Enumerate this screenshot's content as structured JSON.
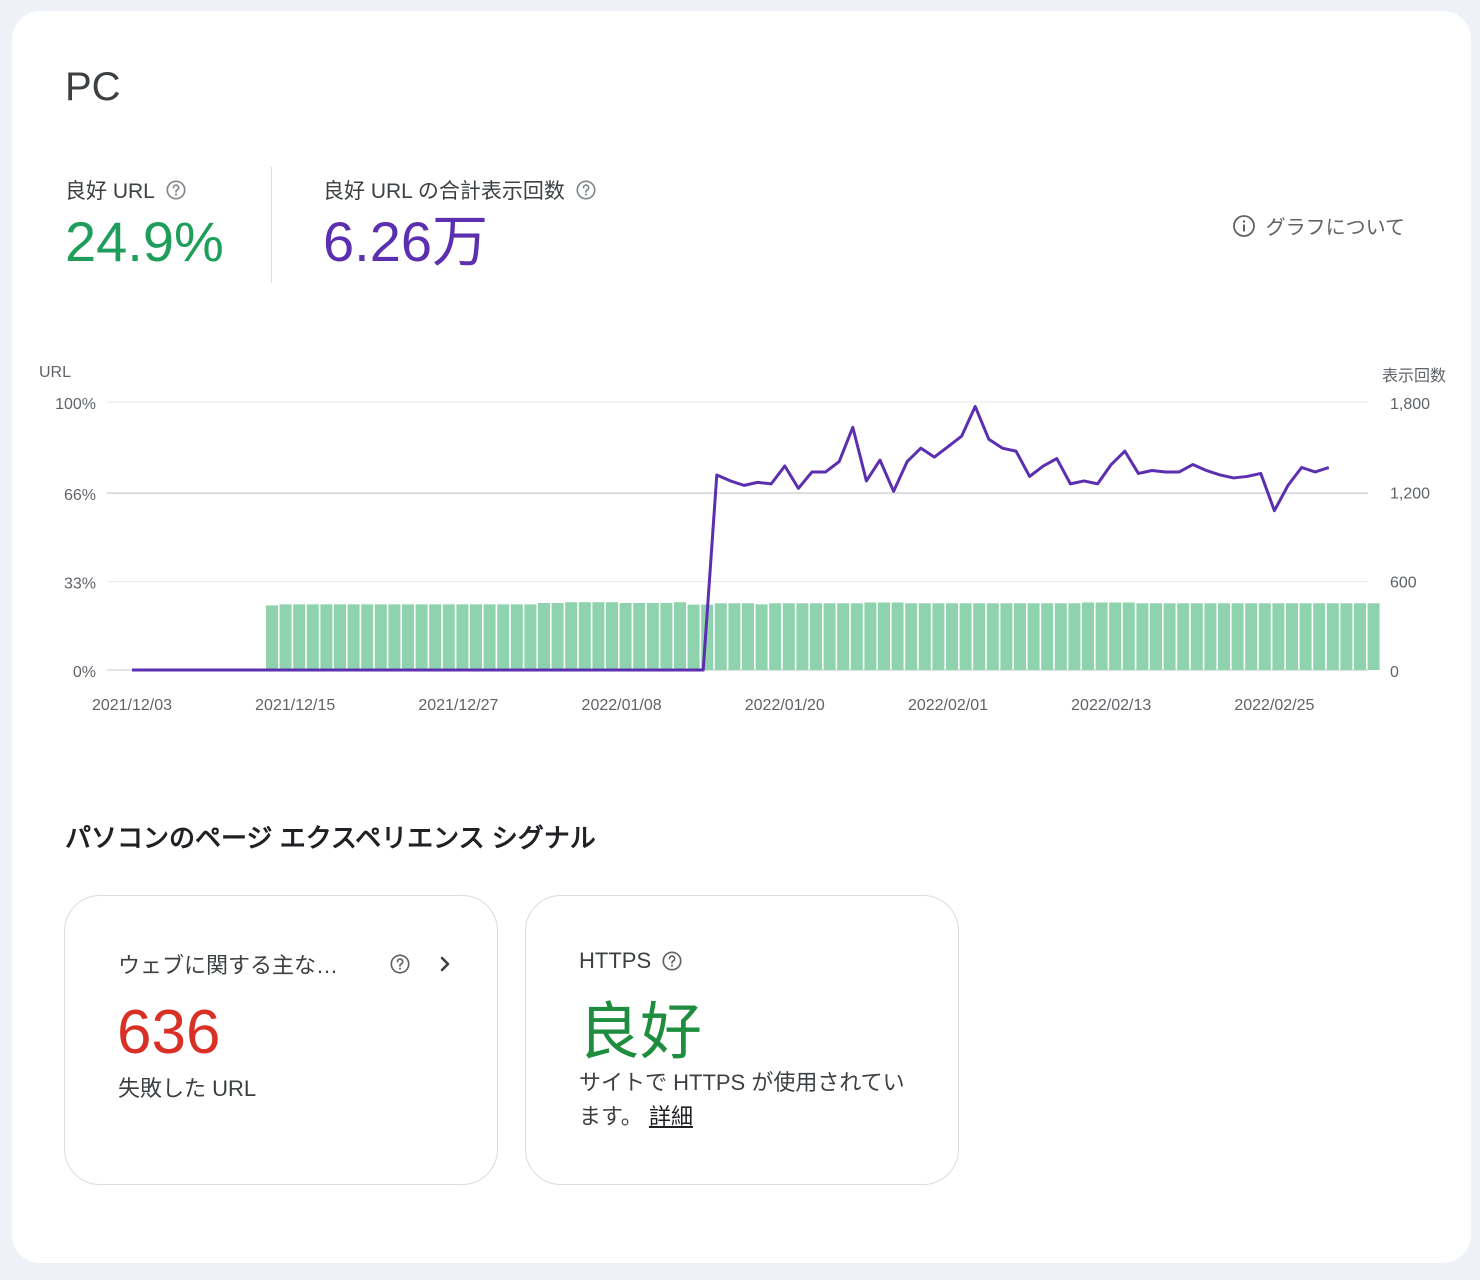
{
  "page": {
    "title": "PC"
  },
  "metrics": {
    "good_url": {
      "label": "良好 URL",
      "value": "24.9%",
      "color": "#1e9e5a"
    },
    "good_impressions": {
      "label": "良好 URL の合計表示回数",
      "value": "6.26万",
      "color": "#5b2fb0"
    }
  },
  "about_graph": {
    "label": "グラフについて"
  },
  "chart_data": {
    "type": "bar+line",
    "y_left_label": "URL",
    "y_right_label": "表示回数",
    "y_left_ticks": [
      "100%",
      "66%",
      "33%",
      "0%"
    ],
    "y_right_ticks": [
      "1,800",
      "1,200",
      "600",
      "0"
    ],
    "y_left_range": [
      0,
      100
    ],
    "y_right_range": [
      0,
      1800
    ],
    "x_tick_labels": [
      "2021/12/03",
      "2021/12/15",
      "2021/12/27",
      "2022/01/08",
      "2022/01/20",
      "2022/02/01",
      "2022/02/13",
      "2022/02/25"
    ],
    "x_start_date": "2021/12/03",
    "x_end_date": "2022/03/04",
    "gridlines": true,
    "series": [
      {
        "name": "良好 URL",
        "type": "bar",
        "color": "#8fd3ae",
        "start_date": "2021/12/13",
        "values": [
          24.1,
          24.5,
          24.5,
          24.5,
          24.5,
          24.5,
          24.5,
          24.5,
          24.5,
          24.5,
          24.5,
          24.5,
          24.5,
          24.5,
          24.5,
          24.5,
          24.5,
          24.5,
          24.5,
          24.5,
          25.0,
          25.0,
          25.3,
          25.3,
          25.3,
          25.3,
          25.0,
          25.0,
          25.0,
          25.0,
          25.3,
          24.4,
          24.4,
          24.9,
          24.9,
          24.9,
          24.5,
          24.9,
          24.9,
          24.9,
          24.9,
          24.9,
          24.9,
          24.9,
          25.2,
          25.2,
          25.2,
          24.9,
          24.9,
          24.9,
          24.9,
          24.9,
          24.9,
          24.9,
          24.9,
          24.9,
          24.9,
          24.9,
          24.9,
          24.9,
          25.2,
          25.2,
          25.2,
          25.2,
          24.9,
          24.9,
          24.9,
          24.9,
          24.9,
          24.9,
          24.9,
          24.9,
          24.9,
          24.9,
          24.9,
          24.9,
          24.9,
          24.9,
          24.9,
          24.9,
          24.9,
          24.9
        ]
      },
      {
        "name": "表示回数",
        "type": "line",
        "color": "#5b2fb0",
        "start_date": "2021/12/03",
        "values": [
          0,
          0,
          0,
          0,
          0,
          0,
          0,
          0,
          0,
          0,
          0,
          0,
          0,
          0,
          0,
          0,
          0,
          0,
          0,
          0,
          0,
          0,
          0,
          0,
          0,
          0,
          0,
          0,
          0,
          0,
          0,
          0,
          0,
          0,
          0,
          0,
          0,
          0,
          0,
          0,
          0,
          0,
          0,
          1310,
          1270,
          1240,
          1260,
          1250,
          1370,
          1220,
          1330,
          1330,
          1400,
          1630,
          1270,
          1410,
          1200,
          1400,
          1490,
          1430,
          1500,
          1570,
          1770,
          1550,
          1490,
          1470,
          1300,
          1370,
          1420,
          1250,
          1270,
          1250,
          1380,
          1470,
          1320,
          1340,
          1330,
          1330,
          1380,
          1340,
          1310,
          1290,
          1300,
          1320,
          1070,
          1240,
          1360,
          1330,
          1360
        ]
      }
    ]
  },
  "signals_section": {
    "title": "パソコンのページ エクスペリエンス シグナル",
    "cards": [
      {
        "label": "ウェブに関する主な…",
        "value": "636",
        "value_color": "#d93025",
        "sub": "失敗した URL"
      },
      {
        "label": "HTTPS",
        "value": "良好",
        "value_color": "#1e8e3e",
        "sub_line1": "サイトで HTTPS が使用されてい",
        "sub_line2": "ます。",
        "link": "詳細"
      }
    ]
  }
}
